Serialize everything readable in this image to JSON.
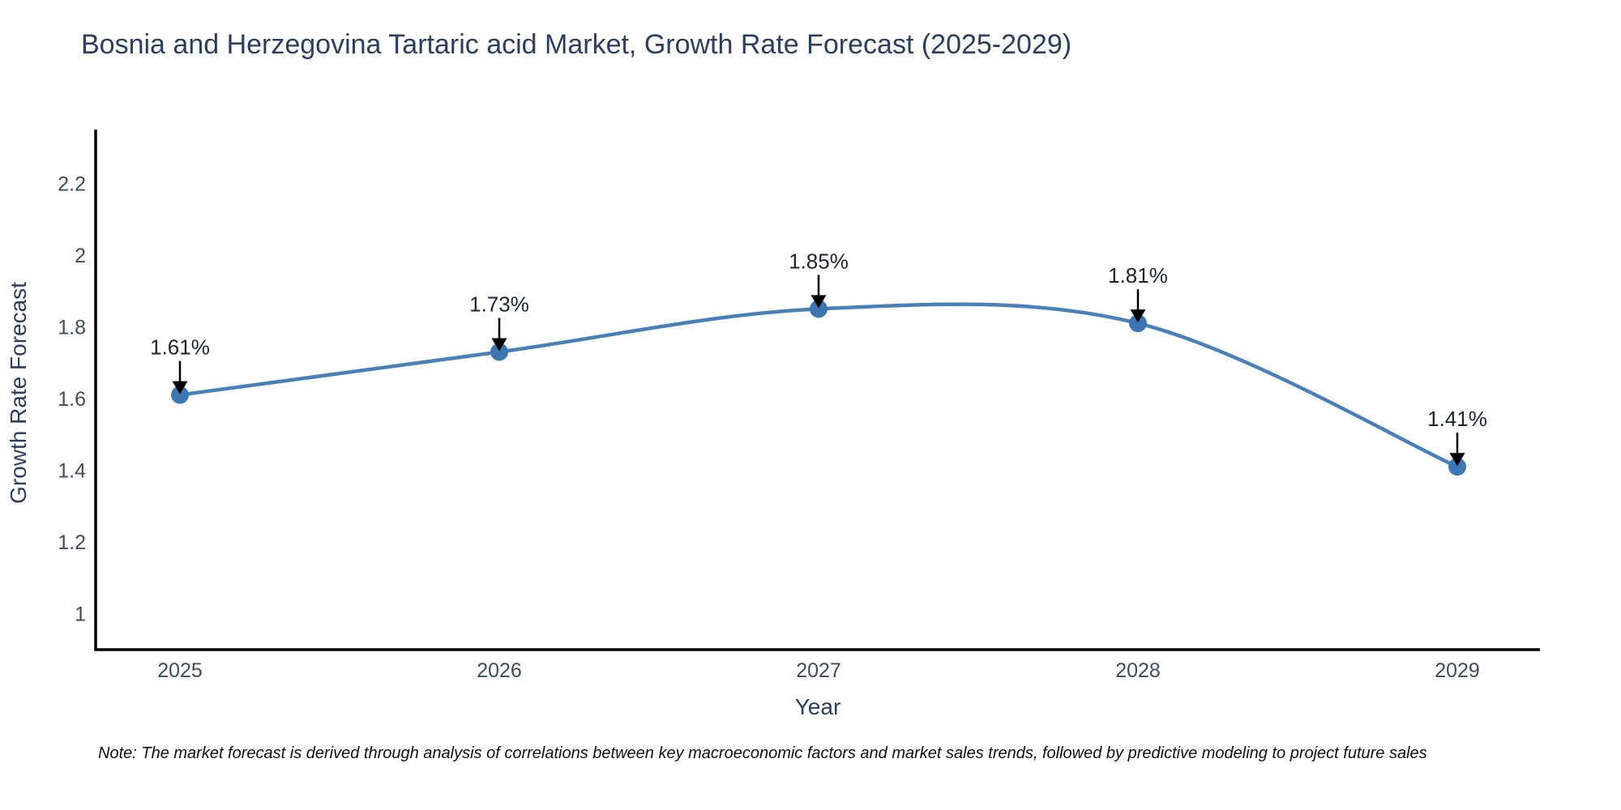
{
  "note": "Note: The market forecast is derived through analysis of correlations between key macroeconomic factors and market sales trends, followed by predictive modeling to project future sales",
  "chart_data": {
    "type": "line",
    "title": "Bosnia and Herzegovina Tartaric acid Market, Growth Rate Forecast (2025-2029)",
    "xlabel": "Year",
    "ylabel": "Growth Rate Forecast",
    "categories": [
      "2025",
      "2026",
      "2027",
      "2028",
      "2029"
    ],
    "series": [
      {
        "name": "Growth Rate Forecast",
        "values": [
          1.61,
          1.73,
          1.85,
          1.81,
          1.41
        ],
        "point_labels": [
          "1.61%",
          "1.73%",
          "1.85%",
          "1.81%",
          "1.41%"
        ]
      }
    ],
    "line_shape": "spline",
    "markers": true,
    "annotations_arrows": true,
    "ylim": [
      0.9,
      2.35
    ],
    "yticks": {
      "values": [
        1,
        1.2,
        1.4,
        1.6,
        1.8,
        2,
        2.2
      ],
      "labels": [
        "1",
        "1.2",
        "1.4",
        "1.6",
        "1.8",
        "2",
        "2.2"
      ]
    },
    "grid": false,
    "legend_position": "none",
    "colors": {
      "line": "#4a80b8",
      "marker": "#3c76b3",
      "axis_line": "#000000",
      "annotation_arrow": "#000000",
      "annotation_text": "#1c2430",
      "tick_text": "#3d4c63",
      "axis_title_text": "#2a3f5f",
      "title_text": "#2a3f5f",
      "note_text": "#111111"
    }
  }
}
